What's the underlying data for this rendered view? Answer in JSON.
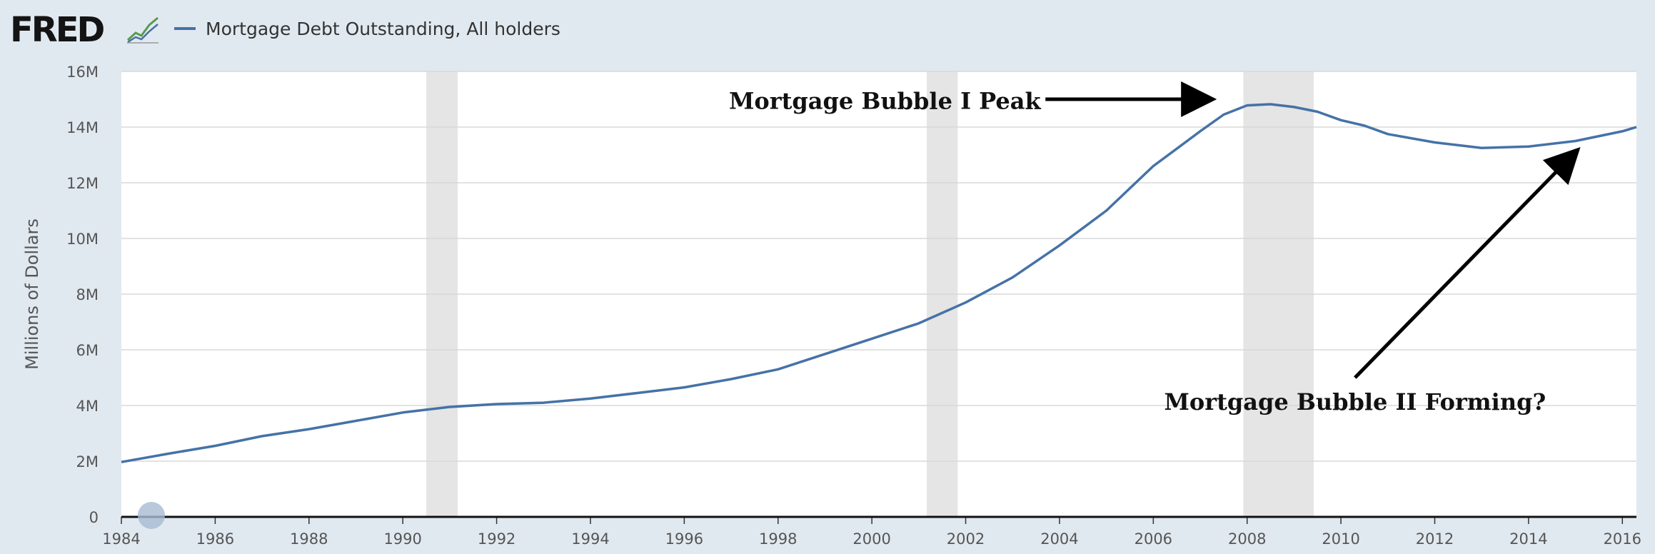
{
  "header": {
    "logo_text": "FRED",
    "logo_icon": "line-chart-icon",
    "legend_label": "Mortgage Debt Outstanding, All holders",
    "series_color": "#4572a7"
  },
  "chart_data": {
    "type": "line",
    "ylabel": "Millions of Dollars",
    "y_ticks": [
      "0",
      "2M",
      "4M",
      "6M",
      "8M",
      "10M",
      "12M",
      "14M",
      "16M"
    ],
    "x_ticks": [
      "1984",
      "1986",
      "1988",
      "1990",
      "1992",
      "1994",
      "1996",
      "1998",
      "2000",
      "2002",
      "2004",
      "2006",
      "2008",
      "2010",
      "2012",
      "2014",
      "2016"
    ],
    "xlim": [
      1984,
      2016.3
    ],
    "ylim": [
      0,
      16
    ],
    "y_unit": "millions of millions of dollars (M)",
    "grid": true,
    "recessions": [
      [
        1990.5,
        1991.17
      ],
      [
        2001.17,
        2001.83
      ],
      [
        2007.92,
        2009.42
      ]
    ],
    "series": [
      {
        "name": "Mortgage Debt Outstanding, All holders",
        "x": [
          1984,
          1985,
          1986,
          1987,
          1988,
          1989,
          1990,
          1991,
          1992,
          1993,
          1994,
          1995,
          1996,
          1997,
          1998,
          1999,
          2000,
          2001,
          2002,
          2003,
          2004,
          2005,
          2006,
          2007,
          2007.5,
          2008,
          2008.5,
          2009,
          2009.5,
          2010,
          2010.5,
          2011,
          2012,
          2013,
          2014,
          2015,
          2016,
          2016.3
        ],
        "y": [
          1.97,
          2.27,
          2.55,
          2.9,
          3.15,
          3.45,
          3.75,
          3.95,
          4.05,
          4.1,
          4.25,
          4.45,
          4.65,
          4.95,
          5.3,
          5.85,
          6.4,
          6.95,
          7.7,
          8.6,
          9.75,
          11.0,
          12.6,
          13.85,
          14.45,
          14.78,
          14.82,
          14.72,
          14.55,
          14.25,
          14.05,
          13.75,
          13.45,
          13.25,
          13.3,
          13.5,
          13.85,
          14.0
        ]
      }
    ],
    "annotations": [
      {
        "text": "Mortgage Bubble I Peak",
        "from": [
          2003.7,
          15.0
        ],
        "to": [
          2007.2,
          15.0
        ],
        "anchor": "end",
        "text_at": [
          2003.6,
          14.65
        ]
      },
      {
        "text": "Mortgage Bubble II Forming?",
        "from": [
          2010.3,
          5.0
        ],
        "to": [
          2015.0,
          13.1
        ],
        "anchor": "middle",
        "text_at": [
          2010.3,
          3.85
        ]
      }
    ]
  }
}
